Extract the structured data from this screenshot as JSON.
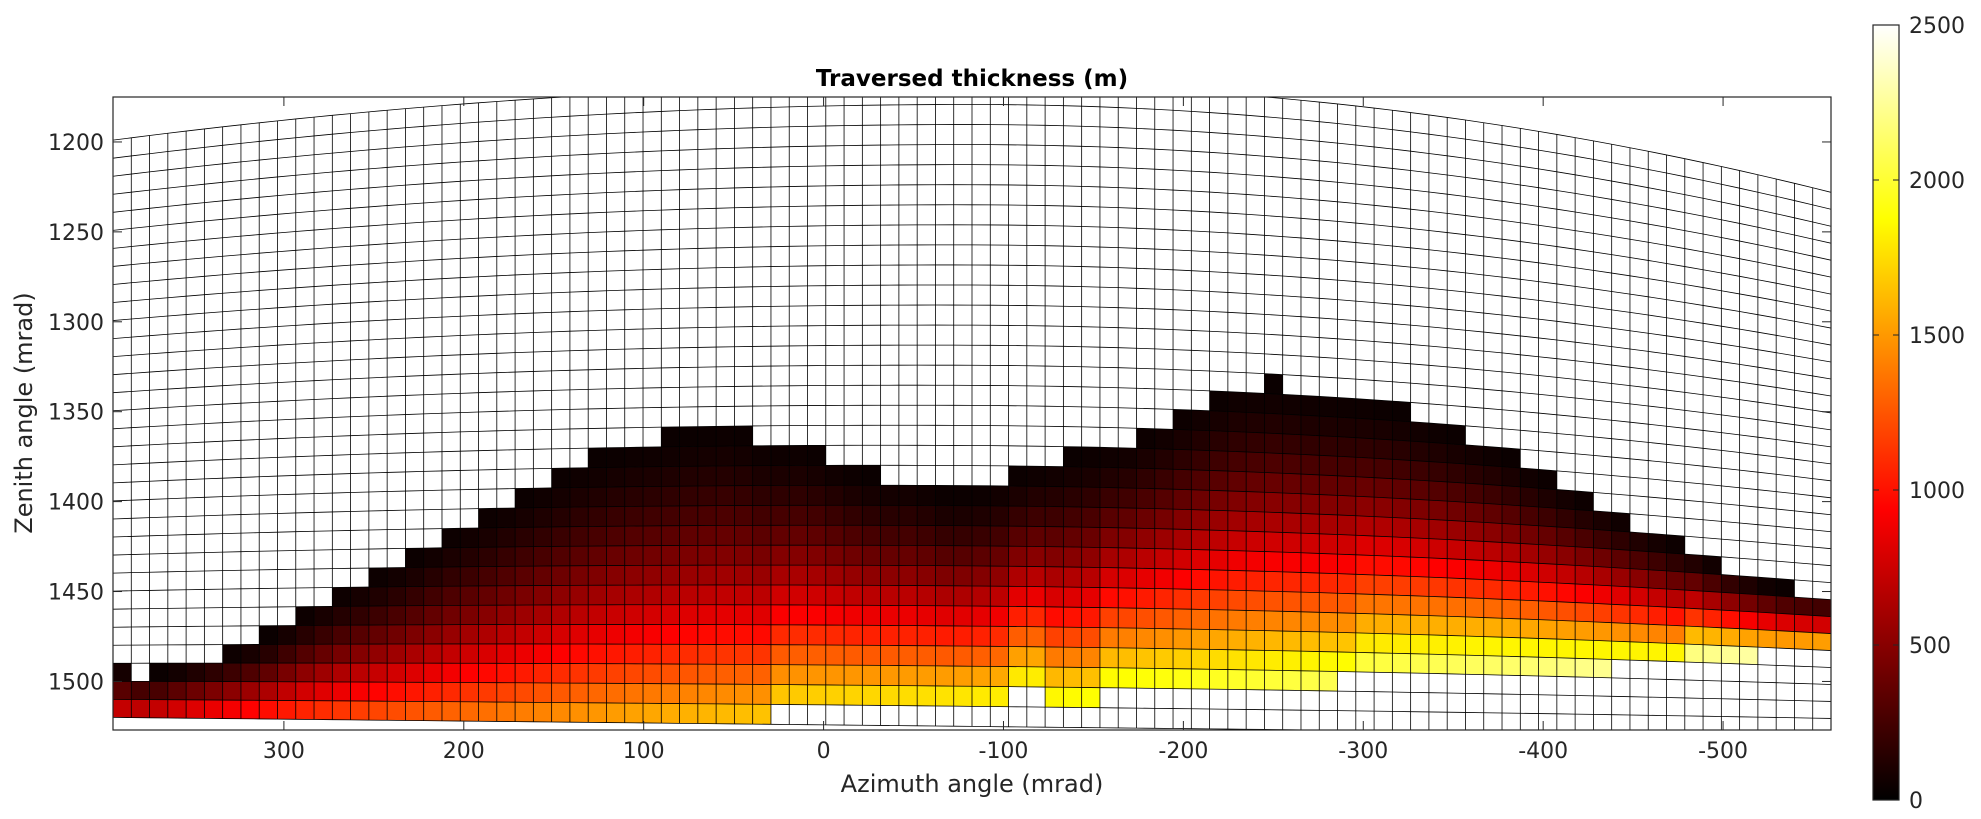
{
  "chart_data": {
    "type": "heatmap",
    "title": "Traversed thickness (m)",
    "xlabel": "Azimuth angle (mrad)",
    "ylabel": "Zenith angle (mrad)",
    "x_reversed": true,
    "y_reversed": true,
    "xlim": [
      395,
      -560
    ],
    "ylim": [
      1175,
      1527
    ],
    "xticks": [
      300,
      200,
      100,
      0,
      -100,
      -200,
      -300,
      -400,
      -500
    ],
    "xtick_labels": [
      "300",
      "200",
      "100",
      "0",
      "-100",
      "-200",
      "-300",
      "-400",
      "-500"
    ],
    "yticks": [
      1200,
      1250,
      1300,
      1350,
      1400,
      1450,
      1500
    ],
    "ytick_labels": [
      "1200",
      "1250",
      "1300",
      "1350",
      "1400",
      "1450",
      "1500"
    ],
    "colormap": "hot",
    "colormap_stops": [
      "#000000",
      "#ff0000",
      "#ffff00",
      "#ffffff"
    ],
    "colorbar": {
      "limits": [
        0,
        2500
      ],
      "ticks": [
        0,
        500,
        1000,
        1500,
        2000,
        2500
      ],
      "tick_labels": [
        "0",
        "500",
        "1000",
        "1500",
        "2000",
        "2500"
      ]
    },
    "grid": {
      "columns": 94,
      "rows": 32,
      "azimuth_start": 395,
      "azimuth_end": -560,
      "zenith_top_center": 1168,
      "zenith_top_edges": 1199,
      "zenith_top_right": 1228,
      "zenith_bottom_left": 1520,
      "zenith_bottom_right": 1530
    },
    "data_region_upper_boundary": {
      "azimuth": [
        395,
        385,
        370,
        330,
        310,
        290,
        270,
        250,
        230,
        210,
        190,
        170,
        150,
        130,
        110,
        90,
        70,
        50,
        30,
        10,
        -10,
        -30,
        -50,
        -70,
        -90,
        -110,
        -130,
        -150,
        -170,
        -190,
        -210,
        -230,
        -250,
        -270,
        -290,
        -310,
        -330,
        -350,
        -370,
        -390,
        -410,
        -430,
        -450,
        -470,
        -490,
        -510,
        -530,
        -560
      ],
      "zenith": [
        1487,
        1495,
        1495,
        1483,
        1475,
        1462,
        1450,
        1440,
        1430,
        1418,
        1407,
        1396,
        1386,
        1376,
        1369,
        1365,
        1360,
        1358,
        1368,
        1368,
        1378,
        1386,
        1386,
        1395,
        1392,
        1382,
        1376,
        1371,
        1365,
        1355,
        1344,
        1336,
        1334,
        1338,
        1341,
        1345,
        1352,
        1360,
        1368,
        1379,
        1390,
        1400,
        1411,
        1420,
        1430,
        1440,
        1447,
        1452
      ]
    },
    "data_region_bottom_boundary": {
      "azimuth": [
        395,
        30,
        30,
        -100,
        -100,
        -120,
        -120,
        -155,
        -155,
        -300,
        -300,
        -480,
        -480,
        -560
      ],
      "zenith": [
        1521,
        1518,
        1510,
        1510,
        1500,
        1500,
        1510,
        1510,
        1500,
        1500,
        1493,
        1493,
        1486,
        1486
      ]
    },
    "thickness_trend": {
      "azimuth": [
        395,
        300,
        200,
        100,
        0,
        -100,
        -200,
        -300,
        -400,
        -500,
        -560
      ],
      "bottom_edge_thickness": [
        1000,
        1200,
        1400,
        1600,
        1750,
        1850,
        1950,
        2100,
        2200,
        2300,
        2300
      ],
      "note_free": true
    }
  }
}
